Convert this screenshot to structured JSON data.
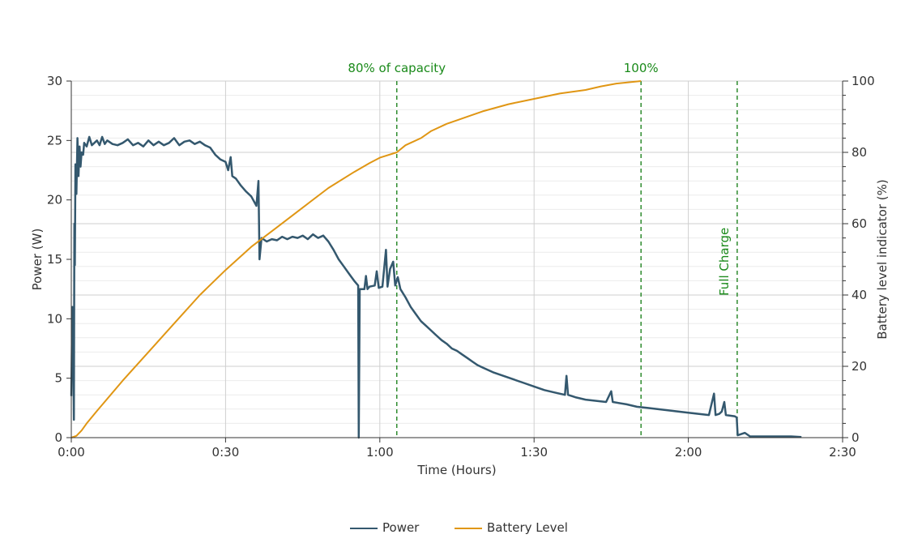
{
  "chart_data": {
    "type": "line",
    "xlabel": "Time (Hours)",
    "ylabel": "Power (W)",
    "y2label": "Battery level indicator (%)",
    "xlim": [
      0,
      150
    ],
    "ylim": [
      0,
      30
    ],
    "y2lim": [
      0,
      100
    ],
    "grid": true,
    "legend_placement": "bottom-center",
    "x_ticks": [
      {
        "value": 0,
        "label": "0:00"
      },
      {
        "value": 30,
        "label": "0:30"
      },
      {
        "value": 60,
        "label": "1:00"
      },
      {
        "value": 90,
        "label": "1:30"
      },
      {
        "value": 120,
        "label": "2:00"
      },
      {
        "value": 150,
        "label": "2:30"
      }
    ],
    "y_ticks": [
      0,
      5,
      10,
      15,
      20,
      25,
      30
    ],
    "y2_ticks": [
      0,
      20,
      40,
      60,
      80,
      100
    ],
    "annotations": [
      {
        "x": 63.3,
        "label": "80% of capacity",
        "orientation": "horizontal"
      },
      {
        "x": 110.8,
        "label": "100%",
        "orientation": "horizontal"
      },
      {
        "x": 129.5,
        "label": "Full Charge",
        "orientation": "vertical"
      }
    ],
    "series": [
      {
        "name": "Power",
        "color": "#34586e",
        "axis": "left",
        "x_unit": "minutes",
        "points": [
          [
            0,
            3.5
          ],
          [
            0.2,
            11
          ],
          [
            0.35,
            9
          ],
          [
            0.5,
            1.5
          ],
          [
            0.6,
            18
          ],
          [
            0.7,
            14.5
          ],
          [
            0.8,
            23
          ],
          [
            1,
            20.5
          ],
          [
            1.2,
            25.2
          ],
          [
            1.4,
            22
          ],
          [
            1.6,
            24.5
          ],
          [
            1.8,
            22.8
          ],
          [
            2,
            24
          ],
          [
            2.3,
            23.8
          ],
          [
            2.5,
            24.8
          ],
          [
            3,
            24.5
          ],
          [
            3.5,
            25.3
          ],
          [
            4,
            24.6
          ],
          [
            5,
            25
          ],
          [
            5.5,
            24.6
          ],
          [
            6,
            25.3
          ],
          [
            6.5,
            24.7
          ],
          [
            7,
            25
          ],
          [
            8,
            24.7
          ],
          [
            9,
            24.6
          ],
          [
            10,
            24.8
          ],
          [
            11,
            25.1
          ],
          [
            12,
            24.6
          ],
          [
            13,
            24.8
          ],
          [
            14,
            24.5
          ],
          [
            15,
            25
          ],
          [
            16,
            24.6
          ],
          [
            17,
            24.9
          ],
          [
            18,
            24.6
          ],
          [
            19,
            24.8
          ],
          [
            20,
            25.2
          ],
          [
            21,
            24.6
          ],
          [
            22,
            24.9
          ],
          [
            23,
            25
          ],
          [
            24,
            24.7
          ],
          [
            25,
            24.9
          ],
          [
            26,
            24.6
          ],
          [
            27,
            24.4
          ],
          [
            28,
            23.8
          ],
          [
            29,
            23.4
          ],
          [
            30,
            23.2
          ],
          [
            30.5,
            22.5
          ],
          [
            31,
            23.6
          ],
          [
            31.3,
            22
          ],
          [
            32,
            21.8
          ],
          [
            33,
            21.2
          ],
          [
            34,
            20.7
          ],
          [
            35,
            20.3
          ],
          [
            36,
            19.5
          ],
          [
            36.4,
            21.6
          ],
          [
            36.6,
            15
          ],
          [
            37,
            16.8
          ],
          [
            38,
            16.5
          ],
          [
            39,
            16.7
          ],
          [
            40,
            16.6
          ],
          [
            41,
            16.9
          ],
          [
            42,
            16.7
          ],
          [
            43,
            16.9
          ],
          [
            44,
            16.8
          ],
          [
            45,
            17
          ],
          [
            46,
            16.7
          ],
          [
            47,
            17.1
          ],
          [
            48,
            16.8
          ],
          [
            49,
            17
          ],
          [
            50,
            16.5
          ],
          [
            51,
            15.8
          ],
          [
            52,
            15
          ],
          [
            53,
            14.4
          ],
          [
            54,
            13.8
          ],
          [
            55,
            13.2
          ],
          [
            55.8,
            12.8
          ],
          [
            55.9,
            0
          ],
          [
            56.1,
            12.5
          ],
          [
            57,
            12.5
          ],
          [
            57.3,
            13.6
          ],
          [
            57.6,
            12.5
          ],
          [
            58,
            12.7
          ],
          [
            59,
            12.8
          ],
          [
            59.4,
            14
          ],
          [
            59.8,
            12.6
          ],
          [
            60.5,
            12.7
          ],
          [
            61.2,
            15.8
          ],
          [
            61.5,
            12.7
          ],
          [
            62,
            14.2
          ],
          [
            62.6,
            14.8
          ],
          [
            63,
            12.8
          ],
          [
            63.5,
            13.5
          ],
          [
            64,
            12.5
          ],
          [
            65,
            11.8
          ],
          [
            66,
            11
          ],
          [
            67,
            10.4
          ],
          [
            68,
            9.8
          ],
          [
            69,
            9.4
          ],
          [
            70,
            9
          ],
          [
            71,
            8.6
          ],
          [
            72,
            8.2
          ],
          [
            73,
            7.9
          ],
          [
            74,
            7.5
          ],
          [
            75,
            7.3
          ],
          [
            76,
            7
          ],
          [
            77,
            6.7
          ],
          [
            78,
            6.4
          ],
          [
            79,
            6.1
          ],
          [
            80,
            5.9
          ],
          [
            82,
            5.5
          ],
          [
            84,
            5.2
          ],
          [
            86,
            4.9
          ],
          [
            88,
            4.6
          ],
          [
            90,
            4.3
          ],
          [
            92,
            4
          ],
          [
            94,
            3.8
          ],
          [
            96,
            3.6
          ],
          [
            96.3,
            5.2
          ],
          [
            96.6,
            3.6
          ],
          [
            98,
            3.4
          ],
          [
            100,
            3.2
          ],
          [
            104,
            3
          ],
          [
            105,
            3.9
          ],
          [
            105.3,
            3
          ],
          [
            108,
            2.8
          ],
          [
            110,
            2.6
          ],
          [
            112,
            2.5
          ],
          [
            116,
            2.3
          ],
          [
            120,
            2.1
          ],
          [
            124,
            1.9
          ],
          [
            125,
            3.7
          ],
          [
            125.3,
            1.9
          ],
          [
            126,
            2
          ],
          [
            126.5,
            2.2
          ],
          [
            127,
            3
          ],
          [
            127.3,
            1.9
          ],
          [
            129,
            1.8
          ],
          [
            129.4,
            1.7
          ],
          [
            129.6,
            0.2
          ],
          [
            131,
            0.4
          ],
          [
            132,
            0.1
          ],
          [
            135,
            0.1
          ],
          [
            140,
            0.1
          ],
          [
            142,
            0.05
          ]
        ]
      },
      {
        "name": "Battery Level",
        "color": "#e09614",
        "axis": "right",
        "x_unit": "minutes",
        "points": [
          [
            0,
            0
          ],
          [
            1,
            0.5
          ],
          [
            2,
            2
          ],
          [
            3,
            4
          ],
          [
            5,
            7.5
          ],
          [
            10,
            16
          ],
          [
            15,
            24
          ],
          [
            20,
            32
          ],
          [
            25,
            40
          ],
          [
            30,
            47
          ],
          [
            35,
            53.5
          ],
          [
            40,
            59
          ],
          [
            45,
            64.5
          ],
          [
            50,
            70
          ],
          [
            55,
            74.5
          ],
          [
            58,
            77
          ],
          [
            60,
            78.5
          ],
          [
            63.3,
            80
          ],
          [
            65,
            82
          ],
          [
            68,
            84
          ],
          [
            70,
            86
          ],
          [
            73,
            88
          ],
          [
            75,
            89
          ],
          [
            78,
            90.5
          ],
          [
            80,
            91.5
          ],
          [
            85,
            93.5
          ],
          [
            90,
            95
          ],
          [
            95,
            96.5
          ],
          [
            100,
            97.5
          ],
          [
            103,
            98.5
          ],
          [
            106,
            99.3
          ],
          [
            110.8,
            100
          ]
        ]
      }
    ]
  }
}
